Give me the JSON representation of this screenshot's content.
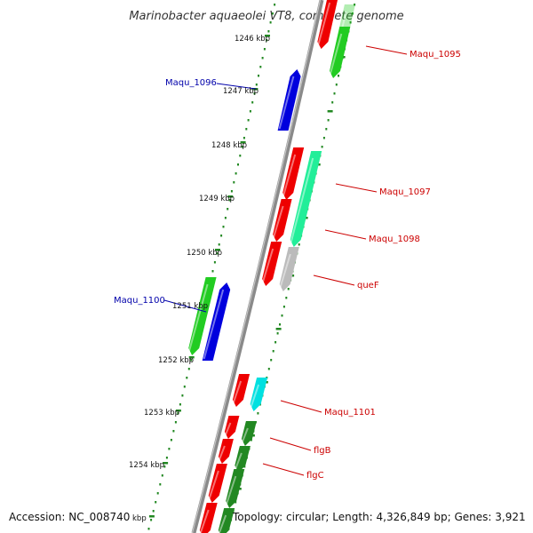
{
  "title": "Marinobacter aquaeolei VT8, complete genome",
  "footer": {
    "accession": "Accession: NC_008740",
    "topology": "Topology: circular; Length: 4,326,849 bp; Genes: 3,921"
  },
  "colors": {
    "forward_cds": "#ee0000",
    "reverse_cds": "#22cc22",
    "rna": "#0000dd",
    "trna": "#00e0e0",
    "backbone": "#888888",
    "ticks": "#228822",
    "forward_label": "#cc0000",
    "reverse_label": "#0000aa"
  },
  "scale_labels": [
    {
      "id": "1246",
      "text": "1246 kbp"
    },
    {
      "id": "1247",
      "text": "1247 kbp"
    },
    {
      "id": "1248",
      "text": "1248 kbp"
    },
    {
      "id": "1249",
      "text": "1249 kbp"
    },
    {
      "id": "1250",
      "text": "1250 kbp"
    },
    {
      "id": "1251",
      "text": "1251 kbp"
    },
    {
      "id": "1252",
      "text": "1252 kbp"
    },
    {
      "id": "1253",
      "text": "1253 kbp"
    },
    {
      "id": "1254",
      "text": "1254 kbp"
    },
    {
      "id": "1255",
      "text": "kbp"
    }
  ],
  "gene_labels": [
    {
      "id": "maqu-1095",
      "text": "Maqu_1095",
      "strand": "forward"
    },
    {
      "id": "maqu-1096",
      "text": "Maqu_1096",
      "strand": "reverse"
    },
    {
      "id": "maqu-1097",
      "text": "Maqu_1097",
      "strand": "forward"
    },
    {
      "id": "maqu-1098",
      "text": "Maqu_1098",
      "strand": "forward"
    },
    {
      "id": "quef",
      "text": "queF",
      "strand": "forward"
    },
    {
      "id": "maqu-1100",
      "text": "Maqu_1100",
      "strand": "reverse"
    },
    {
      "id": "maqu-1101",
      "text": "Maqu_1101",
      "strand": "forward"
    },
    {
      "id": "flgb",
      "text": "flgB",
      "strand": "forward"
    },
    {
      "id": "flgc",
      "text": "flgC",
      "strand": "forward"
    }
  ]
}
